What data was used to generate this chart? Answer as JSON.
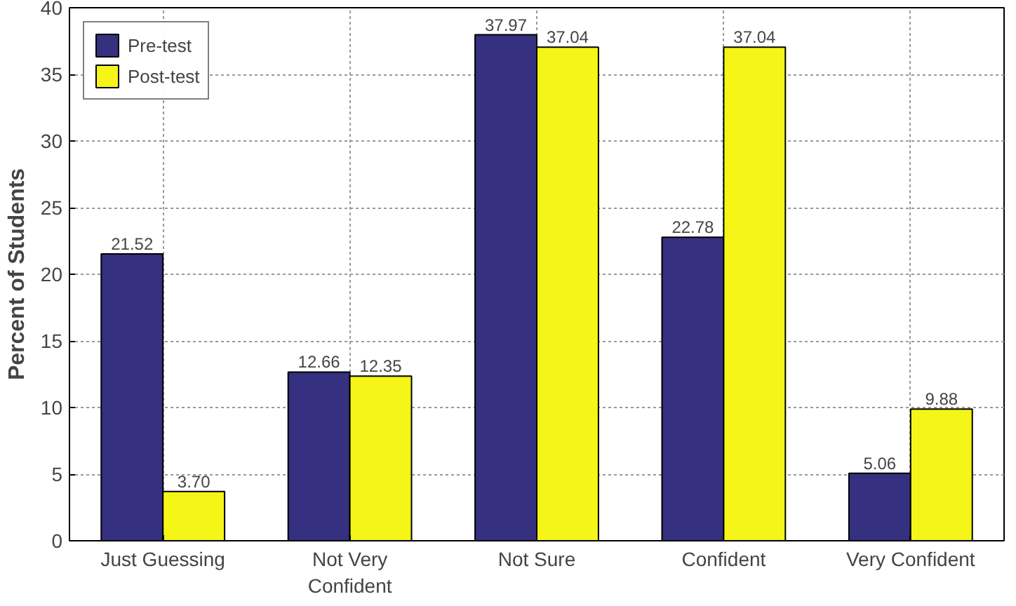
{
  "chart_data": {
    "type": "bar",
    "ylabel": "Percent of Students",
    "categories": [
      "Just Guessing",
      "Not Very Confident",
      "Not Sure",
      "Confident",
      "Very Confident"
    ],
    "series": [
      {
        "name": "Pre-test",
        "color": "#35307f",
        "values": [
          21.52,
          12.66,
          37.97,
          22.78,
          5.06
        ],
        "value_labels": [
          "21.52",
          "12.66",
          "37.97",
          "22.78",
          "5.06"
        ]
      },
      {
        "name": "Post-test",
        "color": "#f5f518",
        "values": [
          3.7,
          12.35,
          37.04,
          37.04,
          9.88
        ],
        "value_labels": [
          "3.70",
          "12.35",
          "37.04",
          "37.04",
          "9.88"
        ]
      }
    ],
    "ylim": [
      0,
      40
    ],
    "yticks": [
      0,
      5,
      10,
      15,
      20,
      25,
      30,
      35,
      40
    ],
    "grid": true,
    "legend": "top left"
  }
}
